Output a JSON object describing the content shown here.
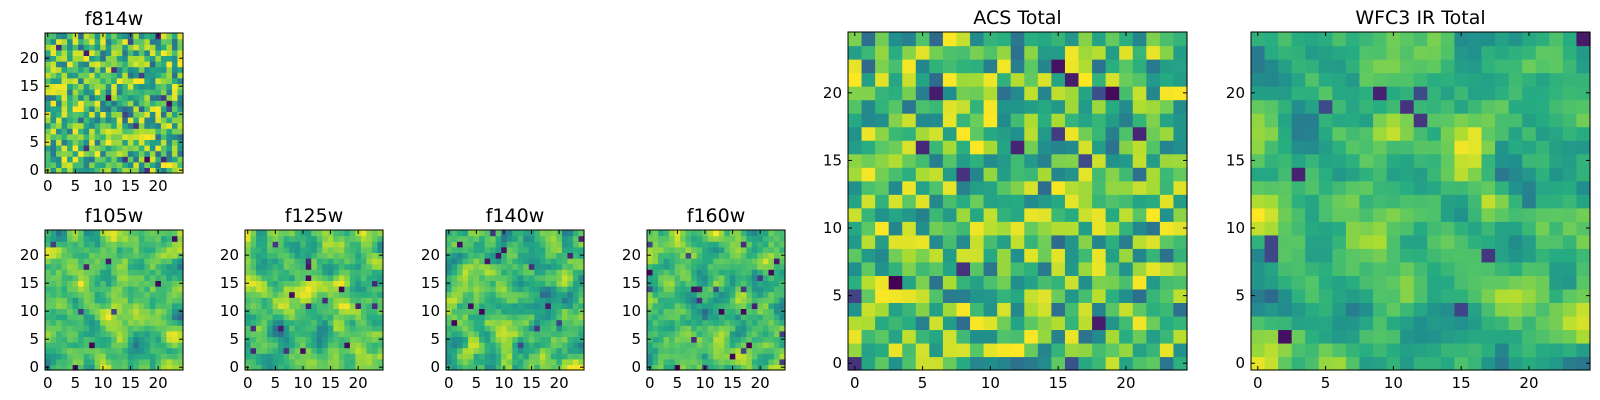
{
  "chart_data": [
    {
      "type": "heatmap",
      "title": "f814w",
      "xlim": [
        0,
        24
      ],
      "ylim": [
        0,
        24
      ],
      "xticks": [
        0,
        5,
        10,
        15,
        20
      ],
      "yticks": [
        0,
        5,
        10,
        15,
        20
      ],
      "grid_size": 25,
      "colormap": "viridis",
      "texture": "fine"
    },
    {
      "type": "heatmap",
      "title": "f105w",
      "xlim": [
        0,
        24
      ],
      "ylim": [
        0,
        24
      ],
      "xticks": [
        0,
        5,
        10,
        15,
        20
      ],
      "yticks": [
        0,
        5,
        10,
        15,
        20
      ],
      "grid_size": 25,
      "colormap": "viridis",
      "texture": "smooth"
    },
    {
      "type": "heatmap",
      "title": "f125w",
      "xlim": [
        0,
        24
      ],
      "ylim": [
        0,
        24
      ],
      "xticks": [
        0,
        5,
        10,
        15,
        20
      ],
      "yticks": [
        0,
        5,
        10,
        15,
        20
      ],
      "grid_size": 25,
      "colormap": "viridis",
      "texture": "smooth"
    },
    {
      "type": "heatmap",
      "title": "f140w",
      "xlim": [
        0,
        24
      ],
      "ylim": [
        0,
        24
      ],
      "xticks": [
        0,
        5,
        10,
        15,
        20
      ],
      "yticks": [
        0,
        5,
        10,
        15,
        20
      ],
      "grid_size": 25,
      "colormap": "viridis",
      "texture": "smooth"
    },
    {
      "type": "heatmap",
      "title": "f160w",
      "xlim": [
        0,
        24
      ],
      "ylim": [
        0,
        24
      ],
      "xticks": [
        0,
        5,
        10,
        15,
        20
      ],
      "yticks": [
        0,
        5,
        10,
        15,
        20
      ],
      "grid_size": 25,
      "colormap": "viridis",
      "texture": "smooth"
    },
    {
      "type": "heatmap",
      "title": "ACS Total",
      "xlim": [
        0,
        24
      ],
      "ylim": [
        0,
        24
      ],
      "xticks": [
        0,
        5,
        10,
        15,
        20
      ],
      "yticks": [
        0,
        5,
        10,
        15,
        20
      ],
      "grid_size": 25,
      "colormap": "viridis",
      "texture": "fine"
    },
    {
      "type": "heatmap",
      "title": "WFC3 IR Total",
      "xlim": [
        0,
        24
      ],
      "ylim": [
        0,
        24
      ],
      "xticks": [
        0,
        5,
        10,
        15,
        20
      ],
      "yticks": [
        0,
        5,
        10,
        15,
        20
      ],
      "grid_size": 25,
      "colormap": "viridis",
      "texture": "smooth"
    }
  ]
}
